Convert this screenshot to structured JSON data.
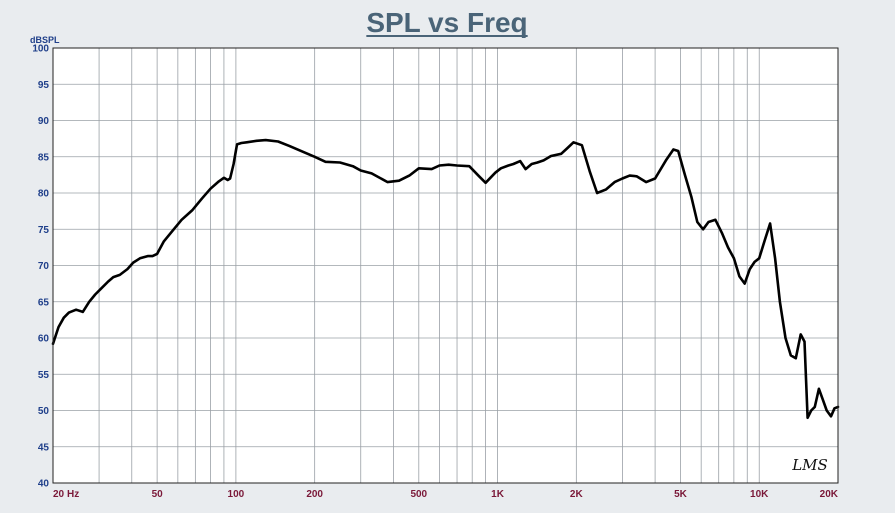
{
  "chart_data": {
    "type": "line",
    "title": "SPL vs Freq",
    "ylabel": "dBSPL",
    "x_scale": "log",
    "xlim": [
      20,
      20000
    ],
    "ylim": [
      40,
      100
    ],
    "grid": true,
    "y_ticks": [
      40,
      45,
      50,
      55,
      60,
      65,
      70,
      75,
      80,
      85,
      90,
      95,
      100
    ],
    "x_ticks": [
      {
        "value": 20,
        "label": "20"
      },
      {
        "value": 50,
        "label": "50"
      },
      {
        "value": 100,
        "label": "100"
      },
      {
        "value": 200,
        "label": "200"
      },
      {
        "value": 500,
        "label": "500"
      },
      {
        "value": 1000,
        "label": "1K"
      },
      {
        "value": 2000,
        "label": "2K"
      },
      {
        "value": 5000,
        "label": "5K"
      },
      {
        "value": 10000,
        "label": "10K"
      },
      {
        "value": 20000,
        "label": "20K"
      }
    ],
    "x_unit_label": "Hz",
    "watermark": "LMS",
    "colors": {
      "line": "#000000",
      "title": "#4a6478",
      "y_ticks": "#1f3f8a",
      "x_ticks": "#7a1838",
      "background": "#e9ecef",
      "plot_bg": "#ffffff",
      "grid": "#9aa0a6"
    },
    "series": [
      {
        "x": [
          20,
          21,
          22,
          23,
          24.5,
          26,
          27.5,
          29,
          30.5,
          32.5,
          34,
          36,
          38.5,
          40.5,
          43,
          46,
          48,
          50,
          53,
          57,
          62,
          68,
          74,
          80,
          86,
          90,
          93,
          95,
          98,
          101,
          105,
          110,
          120,
          130,
          145,
          160,
          180,
          200,
          220,
          250,
          280,
          300,
          330,
          380,
          420,
          460,
          500,
          560,
          600,
          650,
          700,
          780,
          850,
          900,
          980,
          1030,
          1100,
          1150,
          1220,
          1280,
          1350,
          1420,
          1500,
          1600,
          1750,
          1850,
          1950,
          2100,
          2250,
          2400,
          2600,
          2800,
          3000,
          3200,
          3400,
          3700,
          4000,
          4400,
          4700,
          4900,
          5200,
          5500,
          5800,
          6100,
          6400,
          6800,
          7200,
          7600,
          8000,
          8400,
          8800,
          9200,
          9600,
          10000,
          10500,
          11000,
          11500,
          12000,
          12600,
          13200,
          13800,
          14400,
          14900,
          15300,
          15800,
          16300,
          16900,
          17500,
          18100,
          18800,
          19400,
          20000
        ],
        "y": [
          59.2,
          61.5,
          62.8,
          63.5,
          63.9,
          63.6,
          65.0,
          66.0,
          66.8,
          67.8,
          68.4,
          68.7,
          69.5,
          70.4,
          71.0,
          71.3,
          71.3,
          71.6,
          73.3,
          74.7,
          76.3,
          77.6,
          79.2,
          80.6,
          81.6,
          82.1,
          81.8,
          82.0,
          84.0,
          86.7,
          86.9,
          87.0,
          87.2,
          87.3,
          87.1,
          86.5,
          85.7,
          85.0,
          84.3,
          84.2,
          83.7,
          83.1,
          82.7,
          81.5,
          81.7,
          82.4,
          83.4,
          83.3,
          83.8,
          83.9,
          83.8,
          83.7,
          82.3,
          81.4,
          82.8,
          83.4,
          83.8,
          84.0,
          84.4,
          83.3,
          84.0,
          84.2,
          84.5,
          85.1,
          85.4,
          86.2,
          87.0,
          86.6,
          83.0,
          80.0,
          80.5,
          81.5,
          82.0,
          82.4,
          82.3,
          81.5,
          82.0,
          84.5,
          86.0,
          85.8,
          82.5,
          79.5,
          76.0,
          75.0,
          76.0,
          76.3,
          74.5,
          72.5,
          71.0,
          68.5,
          67.5,
          69.5,
          70.5,
          71.0,
          73.5,
          75.8,
          71.0,
          65.0,
          60.0,
          57.6,
          57.2,
          60.5,
          59.5,
          49.0,
          50.0,
          50.5,
          53.0,
          51.5,
          50.0,
          49.2,
          50.3,
          50.5
        ]
      }
    ]
  }
}
